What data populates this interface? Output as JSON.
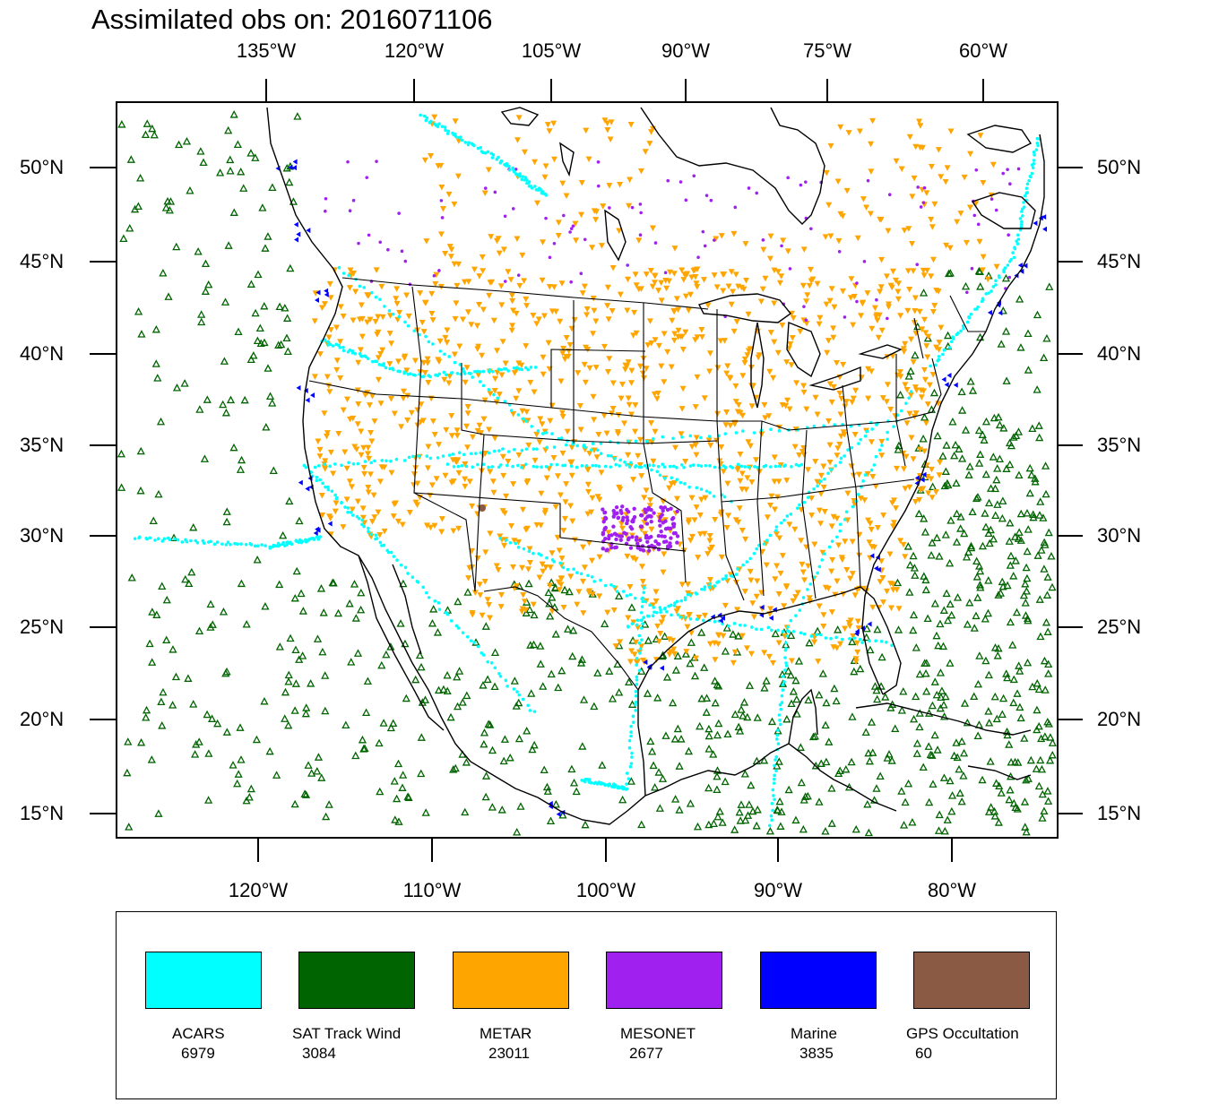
{
  "title": "Assimilated obs on: 2016071106",
  "axes": {
    "top_lon_labels": [
      "135°W",
      "120°W",
      "105°W",
      "90°W",
      "75°W",
      "60°W"
    ],
    "bottom_lon_labels": [
      "120°W",
      "110°W",
      "100°W",
      "90°W",
      "80°W"
    ],
    "lat_labels": [
      "50°N",
      "45°N",
      "40°N",
      "35°N",
      "30°N",
      "25°N",
      "20°N",
      "15°N"
    ]
  },
  "legend": [
    {
      "name": "ACARS",
      "count": "6979",
      "color": "#00ffff"
    },
    {
      "name": "SAT Track Wind",
      "count": "3084",
      "color": "#006400"
    },
    {
      "name": "METAR",
      "count": "23011",
      "color": "#ffa500"
    },
    {
      "name": "MESONET",
      "count": "2677",
      "color": "#a020f0"
    },
    {
      "name": "Marine",
      "count": "3835",
      "color": "#0000ff"
    },
    {
      "name": "GPS Occultation",
      "count": "60",
      "color": "#8b5a44"
    }
  ],
  "colors": {
    "acars": "#00ffff",
    "sat_track_wind": "#006400",
    "metar": "#ffa500",
    "mesonet": "#a020f0",
    "marine": "#0000ff",
    "gps": "#8b5a44",
    "frame": "#000000"
  }
}
